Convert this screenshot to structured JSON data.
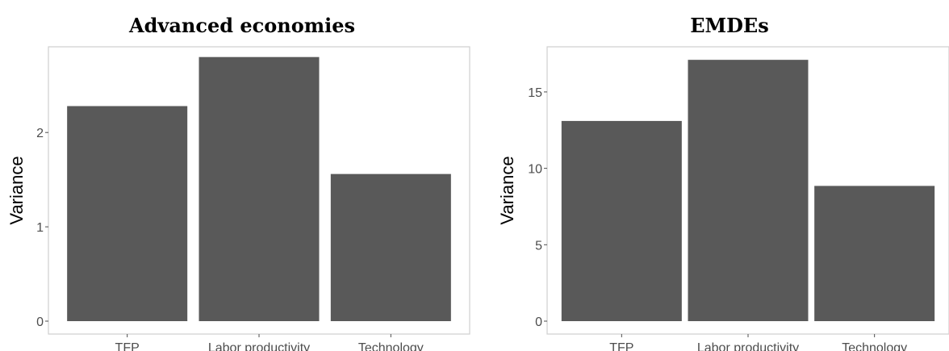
{
  "chart_data": [
    {
      "type": "bar",
      "title": "Advanced economies",
      "xlabel": "",
      "ylabel": "Variance",
      "categories": [
        "TFP",
        "Labor productivity",
        "Technology"
      ],
      "values": [
        2.28,
        2.8,
        1.56
      ],
      "ylim": [
        0,
        2.9
      ],
      "yticks": [
        0,
        1,
        2
      ],
      "bar_color": "#595959",
      "grid": false
    },
    {
      "type": "bar",
      "title": "EMDEs",
      "xlabel": "",
      "ylabel": "Variance",
      "categories": [
        "TFP",
        "Labor productivity",
        "Technology"
      ],
      "values": [
        13.1,
        17.1,
        8.85
      ],
      "ylim": [
        0,
        17.9
      ],
      "yticks": [
        0,
        5,
        10,
        15
      ],
      "bar_color": "#595959",
      "grid": false
    }
  ]
}
